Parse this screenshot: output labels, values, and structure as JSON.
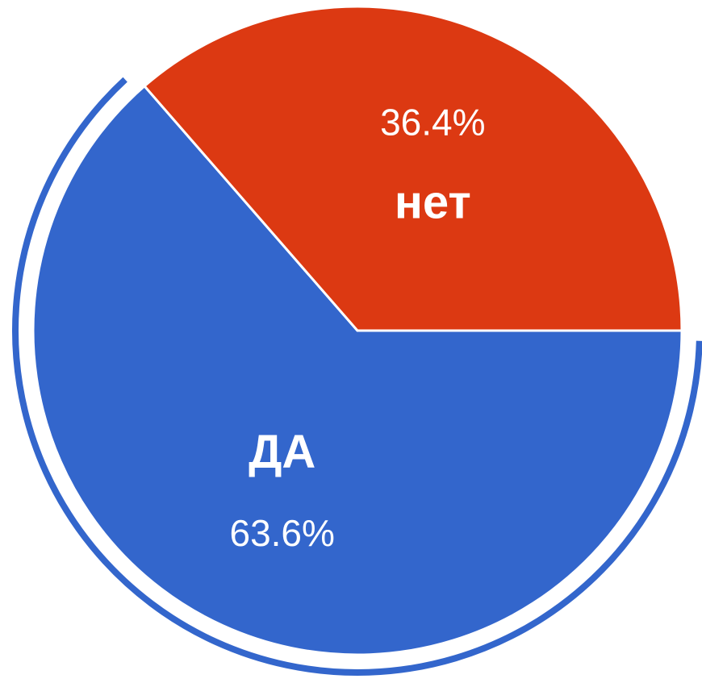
{
  "chart_data": {
    "type": "pie",
    "categories": [
      "ДА",
      "нет"
    ],
    "values": [
      63.6,
      36.4
    ],
    "value_labels": [
      "63.6%",
      "36.4%"
    ],
    "colors": [
      "#3366cc",
      "#dc3912"
    ]
  }
}
